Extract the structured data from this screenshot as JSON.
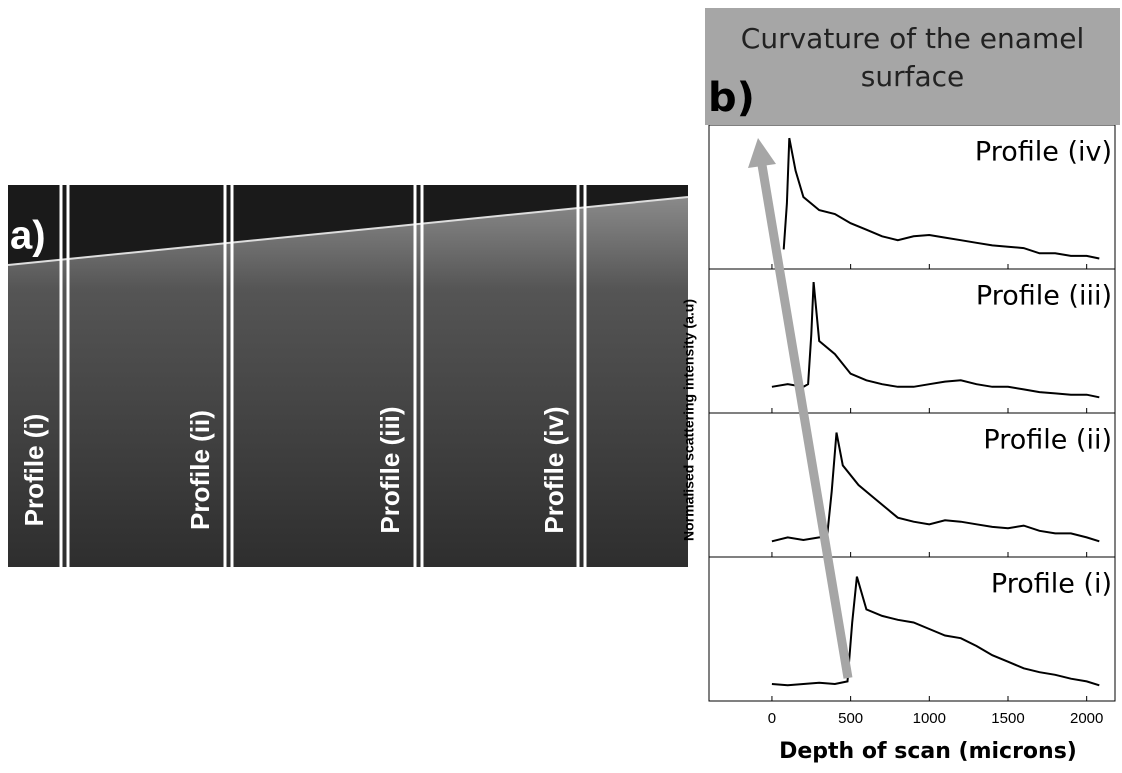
{
  "panel_a": {
    "label": "a)",
    "profiles": [
      "Profile (i)",
      "Profile (ii)",
      "Profile (iii)",
      "Profile (iv)"
    ]
  },
  "chart_data": {
    "type": "line",
    "label": "b)",
    "annotation": "Curvature of the enamel surface",
    "xlabel": "Depth of scan (microns)",
    "ylabel": "Normalised scattering intensity (a.u)",
    "xlim": [
      -400,
      2180
    ],
    "xticks": [
      0,
      500,
      1000,
      1500,
      2000
    ],
    "ylim": [
      0,
      1.1
    ],
    "series": [
      {
        "name": "Profile (iv)",
        "color": "#000000",
        "x": [
          75,
          95,
          110,
          150,
          200,
          300,
          400,
          500,
          600,
          700,
          800,
          900,
          1000,
          1100,
          1200,
          1300,
          1400,
          1500,
          1600,
          1700,
          1800,
          1900,
          2000,
          2080
        ],
        "values": [
          0.15,
          0.5,
          1.0,
          0.75,
          0.55,
          0.45,
          0.42,
          0.35,
          0.3,
          0.25,
          0.22,
          0.25,
          0.26,
          0.24,
          0.22,
          0.2,
          0.18,
          0.17,
          0.16,
          0.12,
          0.12,
          0.1,
          0.1,
          0.08
        ]
      },
      {
        "name": "Profile (iii)",
        "color": "#000000",
        "x": [
          0,
          100,
          200,
          230,
          250,
          265,
          300,
          400,
          500,
          600,
          700,
          800,
          900,
          1000,
          1100,
          1200,
          1300,
          1400,
          1500,
          1600,
          1700,
          1800,
          1900,
          2000,
          2080
        ],
        "values": [
          0.2,
          0.22,
          0.2,
          0.22,
          0.6,
          1.0,
          0.55,
          0.45,
          0.3,
          0.25,
          0.22,
          0.2,
          0.2,
          0.22,
          0.24,
          0.25,
          0.22,
          0.2,
          0.2,
          0.18,
          0.16,
          0.15,
          0.14,
          0.14,
          0.12
        ]
      },
      {
        "name": "Profile (ii)",
        "color": "#000000",
        "x": [
          0,
          100,
          200,
          300,
          350,
          380,
          410,
          450,
          550,
          650,
          800,
          900,
          1000,
          1100,
          1200,
          1300,
          1400,
          1500,
          1600,
          1700,
          1800,
          1900,
          2000,
          2080
        ],
        "values": [
          0.12,
          0.15,
          0.13,
          0.15,
          0.15,
          0.5,
          0.95,
          0.7,
          0.55,
          0.45,
          0.3,
          0.27,
          0.25,
          0.28,
          0.27,
          0.25,
          0.23,
          0.22,
          0.24,
          0.2,
          0.18,
          0.18,
          0.15,
          0.12
        ]
      },
      {
        "name": "Profile (i)",
        "color": "#000000",
        "x": [
          0,
          100,
          200,
          300,
          400,
          480,
          510,
          540,
          600,
          700,
          800,
          900,
          1000,
          1100,
          1200,
          1300,
          1400,
          1500,
          1600,
          1700,
          1800,
          1900,
          2000,
          2080
        ],
        "values": [
          0.13,
          0.12,
          0.13,
          0.14,
          0.13,
          0.15,
          0.6,
          0.95,
          0.7,
          0.65,
          0.62,
          0.6,
          0.55,
          0.5,
          0.48,
          0.42,
          0.35,
          0.3,
          0.25,
          0.22,
          0.2,
          0.17,
          0.15,
          0.12
        ]
      }
    ]
  }
}
